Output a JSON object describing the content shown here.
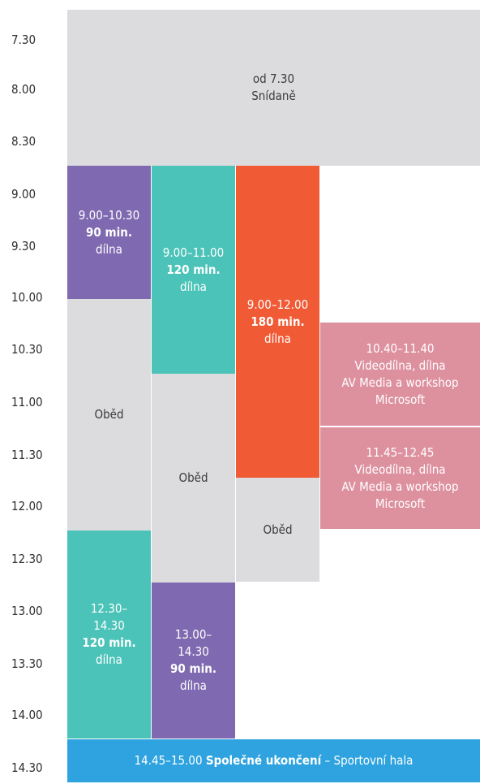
{
  "times": [
    "7.30",
    "8.00",
    "8.30",
    "9.00",
    "9.30",
    "10.00",
    "10.30",
    "11.00",
    "11.30",
    "12.00",
    "12.30",
    "13.00",
    "13.30",
    "14.00",
    "14.30"
  ],
  "breakfast": {
    "line1": "od 7.30",
    "line2": "Snídaně"
  },
  "col1_morning": {
    "time": "9.00–10.30",
    "duration": "90 min.",
    "type": "dílna"
  },
  "col1_lunch": {
    "label": "Oběd"
  },
  "col1_afternoon": {
    "time_a": "12.30–",
    "time_b": "14.30",
    "duration": "120 min.",
    "type": "dílna"
  },
  "col2_morning": {
    "time": "9.00–11.00",
    "duration": "120 min.",
    "type": "dílna"
  },
  "col2_lunch": {
    "label": "Oběd"
  },
  "col2_afternoon": {
    "time_a": "13.00–",
    "time_b": "14.30",
    "duration": "90 min.",
    "type": "dílna"
  },
  "col3_morning": {
    "time": "9.00–12.00",
    "duration": "180 min.",
    "type": "dílna"
  },
  "col3_lunch": {
    "label": "Oběd"
  },
  "pink1": {
    "time": "10.40–11.40",
    "line1": "Videodílna, dílna",
    "line2": "AV Media a workshop",
    "line3": "Microsoft"
  },
  "pink2": {
    "time": "11.45–12.45",
    "line1": "Videodílna, dílna",
    "line2": "AV Media a workshop",
    "line3": "Microsoft"
  },
  "footer": {
    "time": "14.45–15.00",
    "bold": "Společné ukončení",
    "rest": "– Sportovní hala"
  },
  "colors": {
    "gray": "#dcdcde",
    "purple": "#7f69b0",
    "teal": "#4bc3b8",
    "orange": "#f05a35",
    "pink": "#dd909e",
    "blue": "#2ea3df"
  }
}
